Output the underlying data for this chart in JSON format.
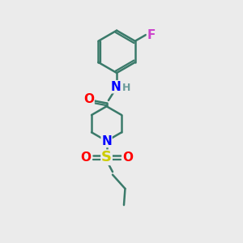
{
  "background_color": "#ebebeb",
  "bond_color": "#3a7a6a",
  "bond_width": 1.8,
  "atom_colors": {
    "O": "#ff0000",
    "N": "#0000ff",
    "F": "#cc44cc",
    "S": "#cccc00",
    "C": "#3a7a6a",
    "H": "#6a9a9a"
  },
  "font_size": 10,
  "fig_size": [
    3.0,
    3.0
  ],
  "dpi": 100
}
